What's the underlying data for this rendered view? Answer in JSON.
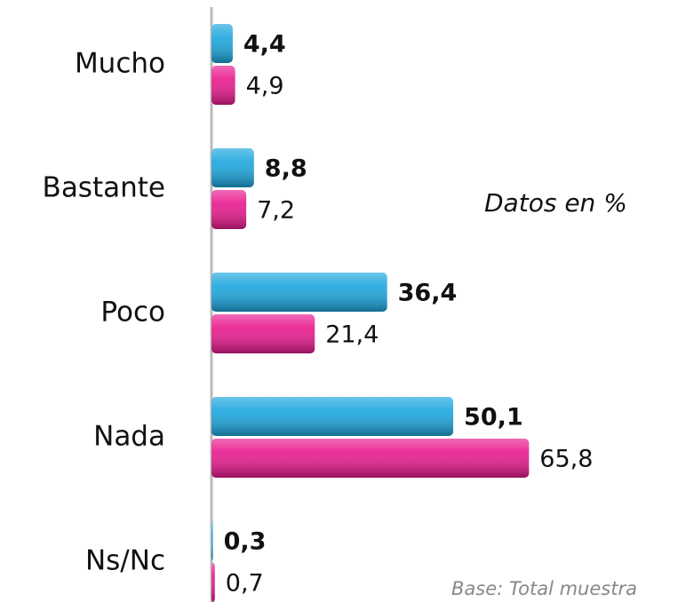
{
  "chart_data": {
    "type": "bar",
    "orientation": "horizontal",
    "categories": [
      "Mucho",
      "Bastante",
      "Poco",
      "Nada",
      "Ns/Nc"
    ],
    "series": [
      {
        "color": "#1ba6de",
        "values": [
          4.4,
          8.8,
          36.4,
          50.1,
          0.3
        ],
        "value_labels": [
          "4,4",
          "8,8",
          "36,4",
          "50,1",
          "0,3"
        ]
      },
      {
        "color": "#e8198e",
        "values": [
          4.9,
          7.2,
          21.4,
          65.8,
          0.7
        ],
        "value_labels": [
          "4,9",
          "7,2",
          "21,4",
          "65,8",
          "0,7"
        ]
      }
    ],
    "annotations": [
      "Datos en %",
      "Base: Total muestra"
    ]
  }
}
